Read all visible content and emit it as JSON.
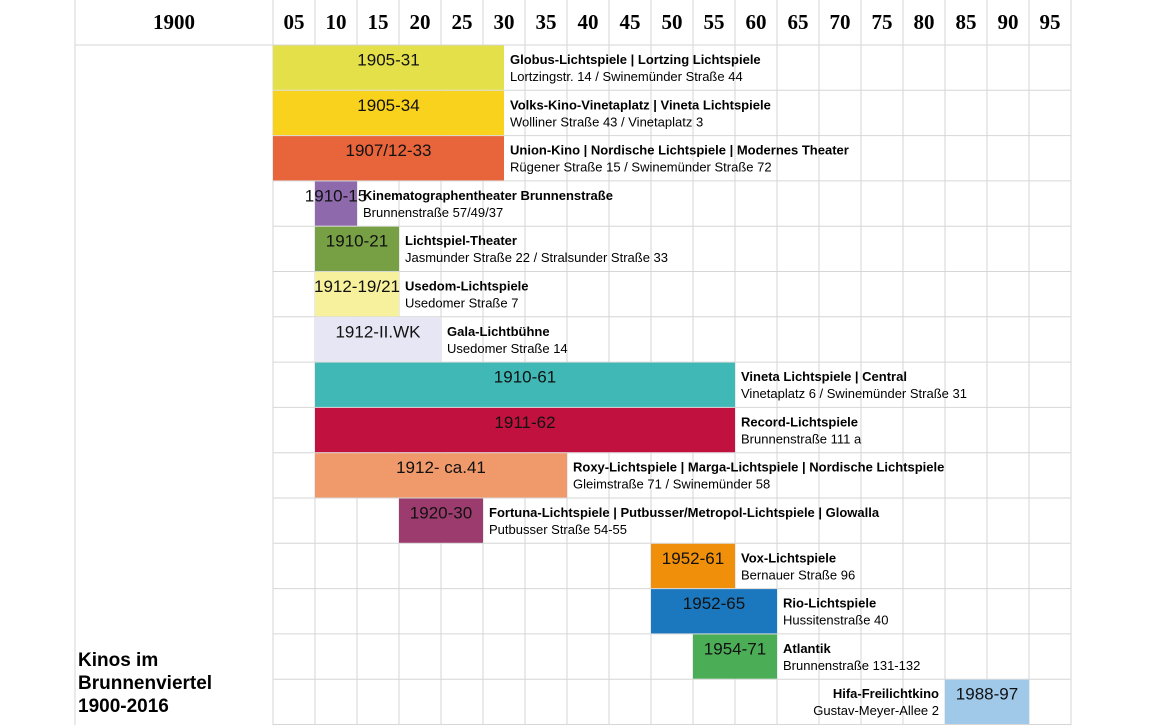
{
  "chart_data": {
    "type": "timeline",
    "title_lines": [
      "Kinos im",
      "Brunnenviertel",
      "1900-2016"
    ],
    "x_range": [
      1900,
      2000
    ],
    "header_labels": [
      {
        "year": 1900,
        "label": "1900"
      },
      {
        "year": 1905,
        "label": "05"
      },
      {
        "year": 1910,
        "label": "10"
      },
      {
        "year": 1915,
        "label": "15"
      },
      {
        "year": 1920,
        "label": "20"
      },
      {
        "year": 1925,
        "label": "25"
      },
      {
        "year": 1930,
        "label": "30"
      },
      {
        "year": 1935,
        "label": "35"
      },
      {
        "year": 1940,
        "label": "40"
      },
      {
        "year": 1945,
        "label": "45"
      },
      {
        "year": 1950,
        "label": "50"
      },
      {
        "year": 1955,
        "label": "55"
      },
      {
        "year": 1960,
        "label": "60"
      },
      {
        "year": 1965,
        "label": "65"
      },
      {
        "year": 1970,
        "label": "70"
      },
      {
        "year": 1975,
        "label": "75"
      },
      {
        "year": 1980,
        "label": "80"
      },
      {
        "year": 1985,
        "label": "85"
      },
      {
        "year": 1990,
        "label": "90"
      },
      {
        "year": 1995,
        "label": "95"
      }
    ],
    "cinemas": [
      {
        "label": "1905-31",
        "start": 1905,
        "end": 1932.5,
        "color": "#e3e04a",
        "name": "Globus-Lichtspiele | Lortzing Lichtspiele",
        "address": "Lortzingstr. 14 / Swinemünder Straße 44",
        "text_side": "right"
      },
      {
        "label": "1905-34",
        "start": 1905,
        "end": 1932.5,
        "color": "#f8d21c",
        "name": "Volks-Kino-Vinetaplatz | Vineta Lichtspiele",
        "address": "Wolliner Straße 43 / Vinetaplatz 3",
        "text_side": "right"
      },
      {
        "label": "1907/12-33",
        "start": 1905,
        "end": 1932.5,
        "color": "#e8643a",
        "name": "Union-Kino | Nordische Lichtspiele | Modernes Theater",
        "address": "Rügener Straße 15 / Swinemünder Straße 72",
        "text_side": "right"
      },
      {
        "label": "1910-15",
        "start": 1910,
        "end": 1915,
        "color": "#8e6aad",
        "name": "Kinematographentheater Brunnenstraße",
        "address": "Brunnenstraße 57/49/37",
        "text_side": "right"
      },
      {
        "label": "1910-21",
        "start": 1910,
        "end": 1920,
        "color": "#76a043",
        "name": "Lichtspiel-Theater",
        "address": "Jasmunder Straße 22 / Stralsunder Straße 33",
        "text_side": "right"
      },
      {
        "label": "1912-19/21",
        "start": 1910,
        "end": 1920,
        "color": "#f7f09c",
        "name": "Usedom-Lichtspiele",
        "address": "Usedomer Straße 7",
        "text_side": "right"
      },
      {
        "label": "1912-II.WK",
        "start": 1910,
        "end": 1925,
        "color": "#e6e6f4",
        "name": "Gala-Lichtbühne",
        "address": "Usedomer Straße 14",
        "text_side": "right"
      },
      {
        "label": "1910-61",
        "start": 1910,
        "end": 1960,
        "color": "#3fb8b6",
        "name": "Vineta Lichtspiele | Central",
        "address": "Vinetaplatz 6 / Swinemünder Straße 31",
        "text_side": "right"
      },
      {
        "label": "1911-62",
        "start": 1910,
        "end": 1960,
        "color": "#c1123f",
        "name": "Record-Lichtspiele",
        "address": "Brunnenstraße 111 a",
        "text_side": "right"
      },
      {
        "label": "1912- ca.41",
        "start": 1910,
        "end": 1940,
        "color": "#f09a6c",
        "name": "Roxy-Lichtspiele | Marga-Lichtspiele | Nordische Lichtspiele",
        "address": "Gleimstraße 71 / Swinemünder 58",
        "text_side": "right"
      },
      {
        "label": "1920-30",
        "start": 1920,
        "end": 1930,
        "color": "#9c3c6e",
        "name": "Fortuna-Lichtspiele | Putbusser/Metropol-Lichtspiele | Glowalla",
        "address": "Putbusser Straße 54-55",
        "text_side": "right"
      },
      {
        "label": "1952-61",
        "start": 1950,
        "end": 1960,
        "color": "#f0900a",
        "name": "Vox-Lichtspiele",
        "address": "Bernauer Straße 96",
        "text_side": "right"
      },
      {
        "label": "1952-65",
        "start": 1950,
        "end": 1965,
        "color": "#1b78bf",
        "name": "Rio-Lichtspiele",
        "address": "Hussitenstraße 40",
        "text_side": "right"
      },
      {
        "label": "1954-71",
        "start": 1955,
        "end": 1965,
        "color": "#4cad57",
        "name": "Atlantik",
        "address": "Brunnenstraße 131-132",
        "text_side": "right"
      },
      {
        "label": "1988-97",
        "start": 1985,
        "end": 1995,
        "color": "#9fc8e9",
        "name": "Hifa-Freilichtkino",
        "address": "Gustav-Meyer-Allee 2",
        "text_side": "left"
      }
    ]
  }
}
